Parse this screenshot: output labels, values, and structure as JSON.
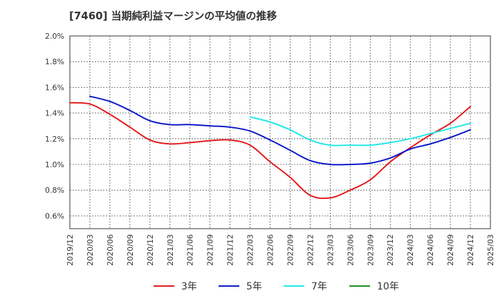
{
  "chart_data": {
    "type": "line",
    "title": "[7460]  当期純利益マージンの平均値の推移",
    "xlabel": "",
    "ylabel": "",
    "ylim": [
      0.5,
      2.0
    ],
    "y_ticks": [
      {
        "value": 0.6,
        "label": "0.6%"
      },
      {
        "value": 0.8,
        "label": "0.8%"
      },
      {
        "value": 1.0,
        "label": "1.0%"
      },
      {
        "value": 1.2,
        "label": "1.2%"
      },
      {
        "value": 1.4,
        "label": "1.4%"
      },
      {
        "value": 1.6,
        "label": "1.6%"
      },
      {
        "value": 1.8,
        "label": "1.8%"
      },
      {
        "value": 2.0,
        "label": "2.0%"
      }
    ],
    "x_ticks": [
      "2019/12",
      "2020/03",
      "2020/06",
      "2020/09",
      "2020/12",
      "2021/03",
      "2021/06",
      "2021/09",
      "2021/12",
      "2022/03",
      "2022/06",
      "2022/09",
      "2022/12",
      "2023/03",
      "2023/06",
      "2023/09",
      "2023/12",
      "2024/03",
      "2024/06",
      "2024/09",
      "2024/12",
      "2025/03"
    ],
    "grid": true,
    "legend_position": "bottom",
    "series": [
      {
        "name": "3年",
        "color": "#e31a1c",
        "points": [
          [
            "2019/12",
            1.48
          ],
          [
            "2020/03",
            1.47
          ],
          [
            "2020/06",
            1.39
          ],
          [
            "2020/09",
            1.29
          ],
          [
            "2020/12",
            1.19
          ],
          [
            "2021/03",
            1.16
          ],
          [
            "2021/06",
            1.17
          ],
          [
            "2021/09",
            1.185
          ],
          [
            "2021/12",
            1.19
          ],
          [
            "2022/03",
            1.15
          ],
          [
            "2022/06",
            1.02
          ],
          [
            "2022/09",
            0.9
          ],
          [
            "2022/12",
            0.76
          ],
          [
            "2023/03",
            0.74
          ],
          [
            "2023/06",
            0.8
          ],
          [
            "2023/09",
            0.88
          ],
          [
            "2023/12",
            1.02
          ],
          [
            "2024/03",
            1.13
          ],
          [
            "2024/06",
            1.23
          ],
          [
            "2024/09",
            1.32
          ],
          [
            "2024/12",
            1.45
          ]
        ]
      },
      {
        "name": "5年",
        "color": "#0b17c8",
        "points": [
          [
            "2020/03",
            1.53
          ],
          [
            "2020/06",
            1.49
          ],
          [
            "2020/09",
            1.42
          ],
          [
            "2020/12",
            1.34
          ],
          [
            "2021/03",
            1.31
          ],
          [
            "2021/06",
            1.31
          ],
          [
            "2021/09",
            1.3
          ],
          [
            "2021/12",
            1.29
          ],
          [
            "2022/03",
            1.26
          ],
          [
            "2022/06",
            1.19
          ],
          [
            "2022/09",
            1.11
          ],
          [
            "2022/12",
            1.03
          ],
          [
            "2023/03",
            1.0
          ],
          [
            "2023/06",
            1.0
          ],
          [
            "2023/09",
            1.01
          ],
          [
            "2023/12",
            1.05
          ],
          [
            "2024/03",
            1.12
          ],
          [
            "2024/06",
            1.16
          ],
          [
            "2024/09",
            1.21
          ],
          [
            "2024/12",
            1.27
          ]
        ]
      },
      {
        "name": "7年",
        "color": "#22e8e8",
        "points": [
          [
            "2022/03",
            1.37
          ],
          [
            "2022/06",
            1.33
          ],
          [
            "2022/09",
            1.27
          ],
          [
            "2022/12",
            1.19
          ],
          [
            "2023/03",
            1.15
          ],
          [
            "2023/06",
            1.15
          ],
          [
            "2023/09",
            1.15
          ],
          [
            "2023/12",
            1.17
          ],
          [
            "2024/03",
            1.2
          ],
          [
            "2024/06",
            1.24
          ],
          [
            "2024/09",
            1.28
          ],
          [
            "2024/12",
            1.32
          ]
        ]
      },
      {
        "name": "10年",
        "color": "#228b22",
        "points": []
      }
    ]
  }
}
